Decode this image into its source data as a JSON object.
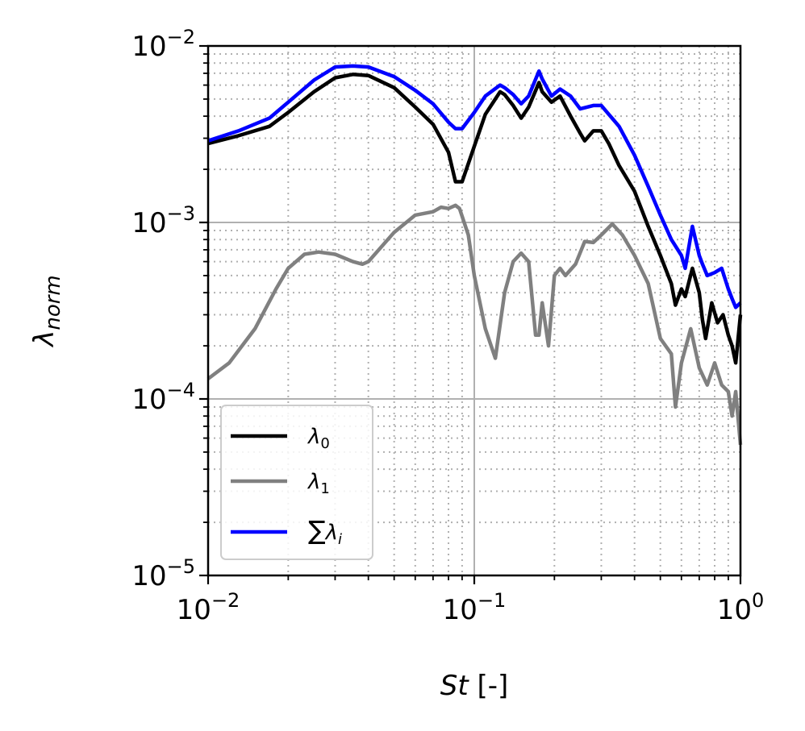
{
  "chart_data": {
    "type": "line",
    "xlabel": {
      "italic": "St",
      "rest": " [-]"
    },
    "ylabel": {
      "base": "λ",
      "sub": "norm"
    },
    "xscale": "log",
    "yscale": "log",
    "xlim": [
      0.01,
      1
    ],
    "ylim": [
      1e-05,
      0.01
    ],
    "x_ticks": [
      {
        "value": 0.01,
        "base": "10",
        "exp": "−2"
      },
      {
        "value": 0.1,
        "base": "10",
        "exp": "−1"
      },
      {
        "value": 1,
        "base": "10",
        "exp": "0"
      }
    ],
    "y_ticks": [
      {
        "value": 1e-05,
        "base": "10",
        "exp": "−5"
      },
      {
        "value": 0.0001,
        "base": "10",
        "exp": "−4"
      },
      {
        "value": 0.001,
        "base": "10",
        "exp": "−3"
      },
      {
        "value": 0.01,
        "base": "10",
        "exp": "−2"
      }
    ],
    "grid": {
      "major": true,
      "minor": true,
      "minor_style": "dotted"
    },
    "legend_position": "lower-left",
    "series": [
      {
        "name": "λ0",
        "legend_label": {
          "base": "λ",
          "sub": "0"
        },
        "color": "#000000",
        "points": [
          [
            0.01,
            0.0028
          ],
          [
            0.013,
            0.0031
          ],
          [
            0.017,
            0.0035
          ],
          [
            0.02,
            0.0042
          ],
          [
            0.025,
            0.0055
          ],
          [
            0.03,
            0.0066
          ],
          [
            0.035,
            0.0069
          ],
          [
            0.04,
            0.0068
          ],
          [
            0.05,
            0.0058
          ],
          [
            0.06,
            0.0045
          ],
          [
            0.07,
            0.0036
          ],
          [
            0.08,
            0.0025
          ],
          [
            0.085,
            0.0017
          ],
          [
            0.09,
            0.0017
          ],
          [
            0.1,
            0.0027
          ],
          [
            0.11,
            0.0041
          ],
          [
            0.125,
            0.0055
          ],
          [
            0.13,
            0.0053
          ],
          [
            0.14,
            0.0046
          ],
          [
            0.15,
            0.0039
          ],
          [
            0.16,
            0.0045
          ],
          [
            0.175,
            0.0062
          ],
          [
            0.18,
            0.0055
          ],
          [
            0.195,
            0.0048
          ],
          [
            0.21,
            0.0052
          ],
          [
            0.23,
            0.004
          ],
          [
            0.25,
            0.0032
          ],
          [
            0.26,
            0.0029
          ],
          [
            0.28,
            0.0033
          ],
          [
            0.3,
            0.0033
          ],
          [
            0.32,
            0.0028
          ],
          [
            0.35,
            0.0021
          ],
          [
            0.4,
            0.0015
          ],
          [
            0.45,
            0.00095
          ],
          [
            0.5,
            0.00065
          ],
          [
            0.55,
            0.00045
          ],
          [
            0.57,
            0.00034
          ],
          [
            0.6,
            0.00042
          ],
          [
            0.62,
            0.00038
          ],
          [
            0.66,
            0.00055
          ],
          [
            0.7,
            0.0004
          ],
          [
            0.72,
            0.00028
          ],
          [
            0.74,
            0.00022
          ],
          [
            0.78,
            0.00035
          ],
          [
            0.82,
            0.00027
          ],
          [
            0.86,
            0.0003
          ],
          [
            0.9,
            0.00023
          ],
          [
            0.93,
            0.0002
          ],
          [
            0.96,
            0.00016
          ],
          [
            1.0,
            0.0003
          ]
        ]
      },
      {
        "name": "λ1",
        "legend_label": {
          "base": "λ",
          "sub": "1"
        },
        "color": "#808080",
        "points": [
          [
            0.01,
            0.00013
          ],
          [
            0.012,
            0.00016
          ],
          [
            0.015,
            0.00025
          ],
          [
            0.018,
            0.00042
          ],
          [
            0.02,
            0.00055
          ],
          [
            0.023,
            0.00066
          ],
          [
            0.026,
            0.00068
          ],
          [
            0.03,
            0.00066
          ],
          [
            0.035,
            0.0006
          ],
          [
            0.038,
            0.00058
          ],
          [
            0.04,
            0.0006
          ],
          [
            0.05,
            0.00088
          ],
          [
            0.06,
            0.0011
          ],
          [
            0.07,
            0.00115
          ],
          [
            0.075,
            0.00122
          ],
          [
            0.08,
            0.0012
          ],
          [
            0.085,
            0.00125
          ],
          [
            0.088,
            0.0012
          ],
          [
            0.095,
            0.00085
          ],
          [
            0.1,
            0.0005
          ],
          [
            0.11,
            0.00025
          ],
          [
            0.12,
            0.00017
          ],
          [
            0.13,
            0.0004
          ],
          [
            0.14,
            0.0006
          ],
          [
            0.15,
            0.00067
          ],
          [
            0.16,
            0.0006
          ],
          [
            0.17,
            0.00023
          ],
          [
            0.175,
            0.00023
          ],
          [
            0.18,
            0.00035
          ],
          [
            0.19,
            0.0002
          ],
          [
            0.2,
            0.0005
          ],
          [
            0.21,
            0.00055
          ],
          [
            0.22,
            0.0005
          ],
          [
            0.24,
            0.00058
          ],
          [
            0.26,
            0.00078
          ],
          [
            0.28,
            0.00077
          ],
          [
            0.3,
            0.00085
          ],
          [
            0.33,
            0.00098
          ],
          [
            0.36,
            0.00085
          ],
          [
            0.4,
            0.00065
          ],
          [
            0.45,
            0.00045
          ],
          [
            0.5,
            0.00022
          ],
          [
            0.55,
            0.00018
          ],
          [
            0.57,
            9e-05
          ],
          [
            0.6,
            0.00016
          ],
          [
            0.65,
            0.00025
          ],
          [
            0.7,
            0.00015
          ],
          [
            0.75,
            0.00012
          ],
          [
            0.8,
            0.00016
          ],
          [
            0.85,
            0.00012
          ],
          [
            0.9,
            0.00011
          ],
          [
            0.93,
            8e-05
          ],
          [
            0.96,
            0.00011
          ],
          [
            1.0,
            5.5e-05
          ]
        ]
      },
      {
        "name": "∑λi",
        "legend_label": {
          "sum": "∑",
          "base": "λ",
          "sub": "i"
        },
        "color": "#0000ff",
        "points": [
          [
            0.01,
            0.0029
          ],
          [
            0.013,
            0.0033
          ],
          [
            0.017,
            0.0039
          ],
          [
            0.02,
            0.0048
          ],
          [
            0.025,
            0.0064
          ],
          [
            0.03,
            0.0076
          ],
          [
            0.035,
            0.0077
          ],
          [
            0.04,
            0.0076
          ],
          [
            0.05,
            0.0067
          ],
          [
            0.06,
            0.0056
          ],
          [
            0.07,
            0.0047
          ],
          [
            0.08,
            0.0037
          ],
          [
            0.085,
            0.0034
          ],
          [
            0.09,
            0.0034
          ],
          [
            0.1,
            0.0042
          ],
          [
            0.11,
            0.0052
          ],
          [
            0.125,
            0.006
          ],
          [
            0.13,
            0.0058
          ],
          [
            0.14,
            0.0053
          ],
          [
            0.15,
            0.0047
          ],
          [
            0.16,
            0.0052
          ],
          [
            0.175,
            0.0072
          ],
          [
            0.18,
            0.0065
          ],
          [
            0.195,
            0.0052
          ],
          [
            0.21,
            0.0057
          ],
          [
            0.23,
            0.0052
          ],
          [
            0.25,
            0.0044
          ],
          [
            0.28,
            0.0046
          ],
          [
            0.3,
            0.0046
          ],
          [
            0.32,
            0.0041
          ],
          [
            0.35,
            0.0035
          ],
          [
            0.4,
            0.0024
          ],
          [
            0.45,
            0.0016
          ],
          [
            0.5,
            0.0011
          ],
          [
            0.55,
            0.0008
          ],
          [
            0.6,
            0.00065
          ],
          [
            0.62,
            0.00055
          ],
          [
            0.66,
            0.00095
          ],
          [
            0.7,
            0.00065
          ],
          [
            0.72,
            0.00058
          ],
          [
            0.75,
            0.0005
          ],
          [
            0.8,
            0.00052
          ],
          [
            0.85,
            0.00055
          ],
          [
            0.9,
            0.00042
          ],
          [
            0.93,
            0.00037
          ],
          [
            0.96,
            0.00033
          ],
          [
            1.0,
            0.00035
          ]
        ]
      }
    ]
  }
}
